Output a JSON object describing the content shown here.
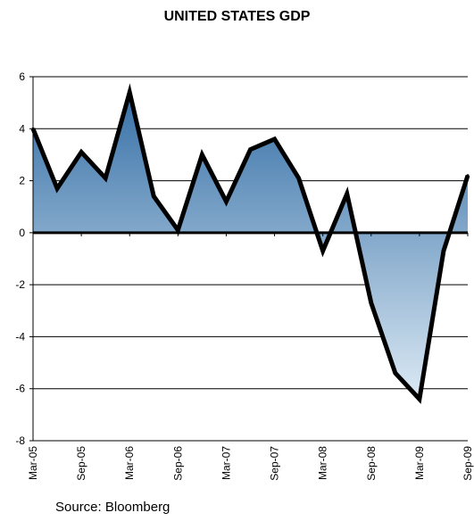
{
  "chart_data": {
    "type": "area",
    "title": "UNITED STATES GDP",
    "xlabel": "",
    "ylabel": "",
    "ylim": [
      -8,
      6
    ],
    "yticks": [
      6,
      4,
      2,
      0,
      -2,
      -4,
      -6,
      -8
    ],
    "xtick_labels": [
      "Mar-05",
      "Sep-05",
      "Mar-06",
      "Sep-06",
      "Mar-07",
      "Sep-07",
      "Mar-08",
      "Sep-08",
      "Mar-09",
      "Sep-09"
    ],
    "x": [
      "Mar-05",
      "Jun-05",
      "Sep-05",
      "Dec-05",
      "Mar-06",
      "Jun-06",
      "Sep-06",
      "Dec-06",
      "Mar-07",
      "Jun-07",
      "Sep-07",
      "Dec-07",
      "Mar-08",
      "Jun-08",
      "Sep-08",
      "Dec-08",
      "Mar-09",
      "Jun-09",
      "Sep-09"
    ],
    "series": [
      {
        "values": [
          4.0,
          1.7,
          3.1,
          2.1,
          5.4,
          1.4,
          0.1,
          3.0,
          1.2,
          3.2,
          3.6,
          2.1,
          -0.7,
          1.5,
          -2.7,
          -5.4,
          -6.4,
          -0.7,
          2.2
        ]
      }
    ],
    "grid": true,
    "source": "Source: Bloomberg",
    "colors": {
      "fill_top": "#2e6aa3",
      "fill_bottom": "#e2eef7",
      "line": "#000000",
      "grid": "#000000"
    }
  }
}
